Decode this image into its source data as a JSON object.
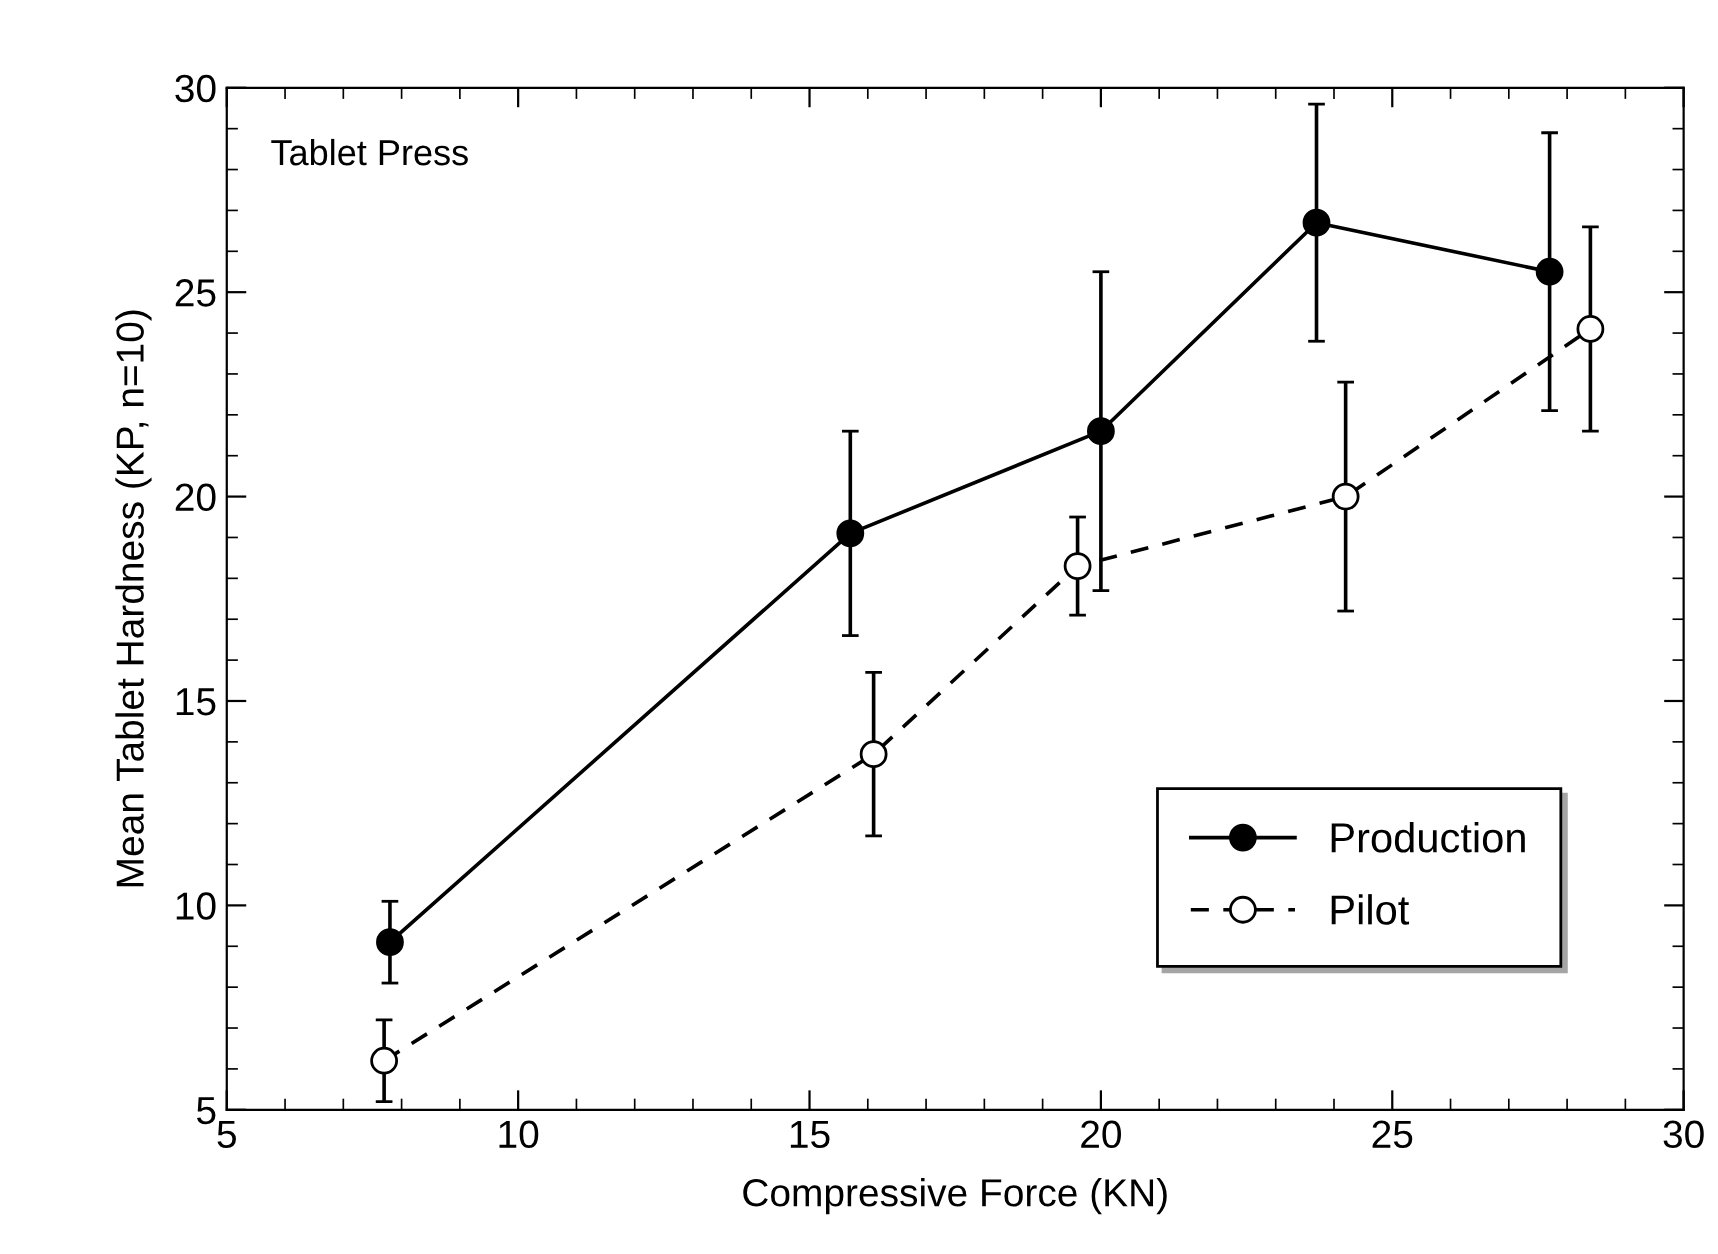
{
  "chart_data": {
    "type": "line",
    "xlabel": "Compressive Force (KN)",
    "ylabel": "Mean Tablet Hardness (KP, n=10)",
    "annotations": [
      "Tablet Press"
    ],
    "series": [
      {
        "name": "Production",
        "color": "#000000",
        "marker": "circle",
        "line_style": "solid",
        "x": [
          7.8,
          15.7,
          20.0,
          23.7,
          27.7
        ],
        "values": [
          9.1,
          19.1,
          21.6,
          26.7,
          25.5
        ],
        "errors": [
          1.0,
          2.5,
          3.9,
          2.9,
          3.4
        ]
      },
      {
        "name": "Pilot",
        "color": "#000000",
        "marker": "circle",
        "line_style": "dashed",
        "x": [
          7.7,
          16.1,
          19.6,
          24.2,
          28.4
        ],
        "values": [
          6.2,
          13.7,
          18.3,
          20.0,
          24.1
        ],
        "errors": [
          1.0,
          2.0,
          1.2,
          2.8,
          2.5
        ]
      }
    ],
    "xlim": [
      5,
      30
    ],
    "ylim": [
      5,
      30
    ],
    "xticks": [
      5,
      10,
      15,
      20,
      25,
      30
    ],
    "yticks": [
      5,
      10,
      15,
      20,
      25,
      30
    ],
    "grid": false,
    "legend": "bottom right"
  }
}
